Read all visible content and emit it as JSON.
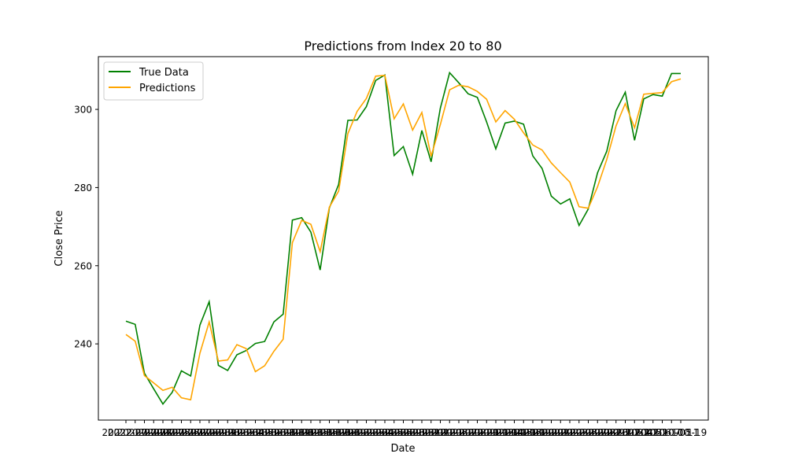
{
  "chart_data": {
    "type": "line",
    "title": "Predictions from Index 20 to 80",
    "xlabel": "Date",
    "ylabel": "Close Price",
    "ylim": [
      220.5,
      313.5
    ],
    "yticks": [
      240,
      260,
      280,
      300
    ],
    "grid": false,
    "legend_position": "upper-left",
    "x": [
      "2022-07-19",
      "2022-07-20",
      "2022-07-21",
      "2022-07-22",
      "2022-07-25",
      "2022-07-26",
      "2022-07-27",
      "2022-07-28",
      "2022-07-29",
      "2022-08-01",
      "2022-08-02",
      "2022-08-03",
      "2022-08-04",
      "2022-08-05",
      "2022-08-08",
      "2022-08-09",
      "2022-08-10",
      "2022-08-11",
      "2022-08-12",
      "2022-08-15",
      "2022-08-16",
      "2022-08-17",
      "2022-08-18",
      "2022-08-19",
      "2022-08-22",
      "2022-08-23",
      "2022-08-24",
      "2022-08-25",
      "2022-08-26",
      "2022-08-29",
      "2022-08-30",
      "2022-08-31",
      "2022-09-01",
      "2022-09-02",
      "2022-09-06",
      "2022-09-07",
      "2022-09-08",
      "2022-09-09",
      "2022-09-12",
      "2022-09-13",
      "2022-09-14",
      "2022-09-15",
      "2022-09-16",
      "2022-09-19",
      "2022-09-20",
      "2022-09-21",
      "2022-09-22",
      "2022-09-23",
      "2022-09-26",
      "2022-09-27",
      "2022-09-28",
      "2022-09-29",
      "2022-09-30",
      "2022-10-03",
      "2022-10-04",
      "2022-10-05",
      "2022-10-06",
      "2022-10-07",
      "2022-10-10",
      "2022-10-11",
      "2022-10-12"
    ],
    "tick_label_first": "2022",
    "tick_label_last": "-05-19",
    "series": [
      {
        "name": "True Data",
        "color": "#008000",
        "values": [
          245.8,
          245.0,
          232.5,
          228.5,
          224.6,
          227.6,
          233.1,
          231.8,
          244.8,
          250.8,
          234.5,
          233.2,
          237.2,
          238.3,
          240.1,
          240.6,
          245.6,
          247.6,
          271.7,
          272.3,
          268.6,
          258.9,
          274.8,
          280.8,
          297.2,
          297.3,
          300.7,
          307.4,
          308.8,
          288.2,
          290.5,
          283.4,
          294.6,
          286.6,
          300.3,
          309.4,
          306.8,
          304.0,
          303.1,
          296.8,
          289.9,
          296.5,
          297.0,
          296.2,
          288.1,
          284.9,
          277.8,
          275.8,
          277.1,
          270.3,
          274.5,
          283.8,
          289.3,
          299.7,
          304.4,
          292.1,
          302.7,
          303.8,
          303.4,
          309.2,
          309.2
        ]
      },
      {
        "name": "Predictions",
        "color": "#FFA500",
        "values": [
          242.4,
          240.7,
          231.9,
          230.0,
          228.1,
          228.9,
          226.2,
          225.7,
          237.6,
          245.6,
          235.6,
          235.9,
          239.8,
          238.8,
          232.9,
          234.4,
          238.1,
          241.2,
          265.9,
          271.6,
          270.6,
          263.6,
          275.0,
          279.1,
          293.8,
          299.5,
          302.8,
          308.5,
          308.7,
          297.6,
          301.4,
          294.7,
          299.2,
          288.0,
          296.1,
          305.0,
          306.2,
          305.8,
          304.6,
          302.6,
          296.8,
          299.7,
          297.5,
          294.0,
          290.9,
          289.6,
          286.3,
          283.8,
          281.4,
          275.1,
          274.7,
          280.2,
          287.2,
          295.8,
          301.5,
          295.3,
          303.9,
          304.1,
          304.3,
          307.1,
          307.8
        ]
      }
    ]
  }
}
